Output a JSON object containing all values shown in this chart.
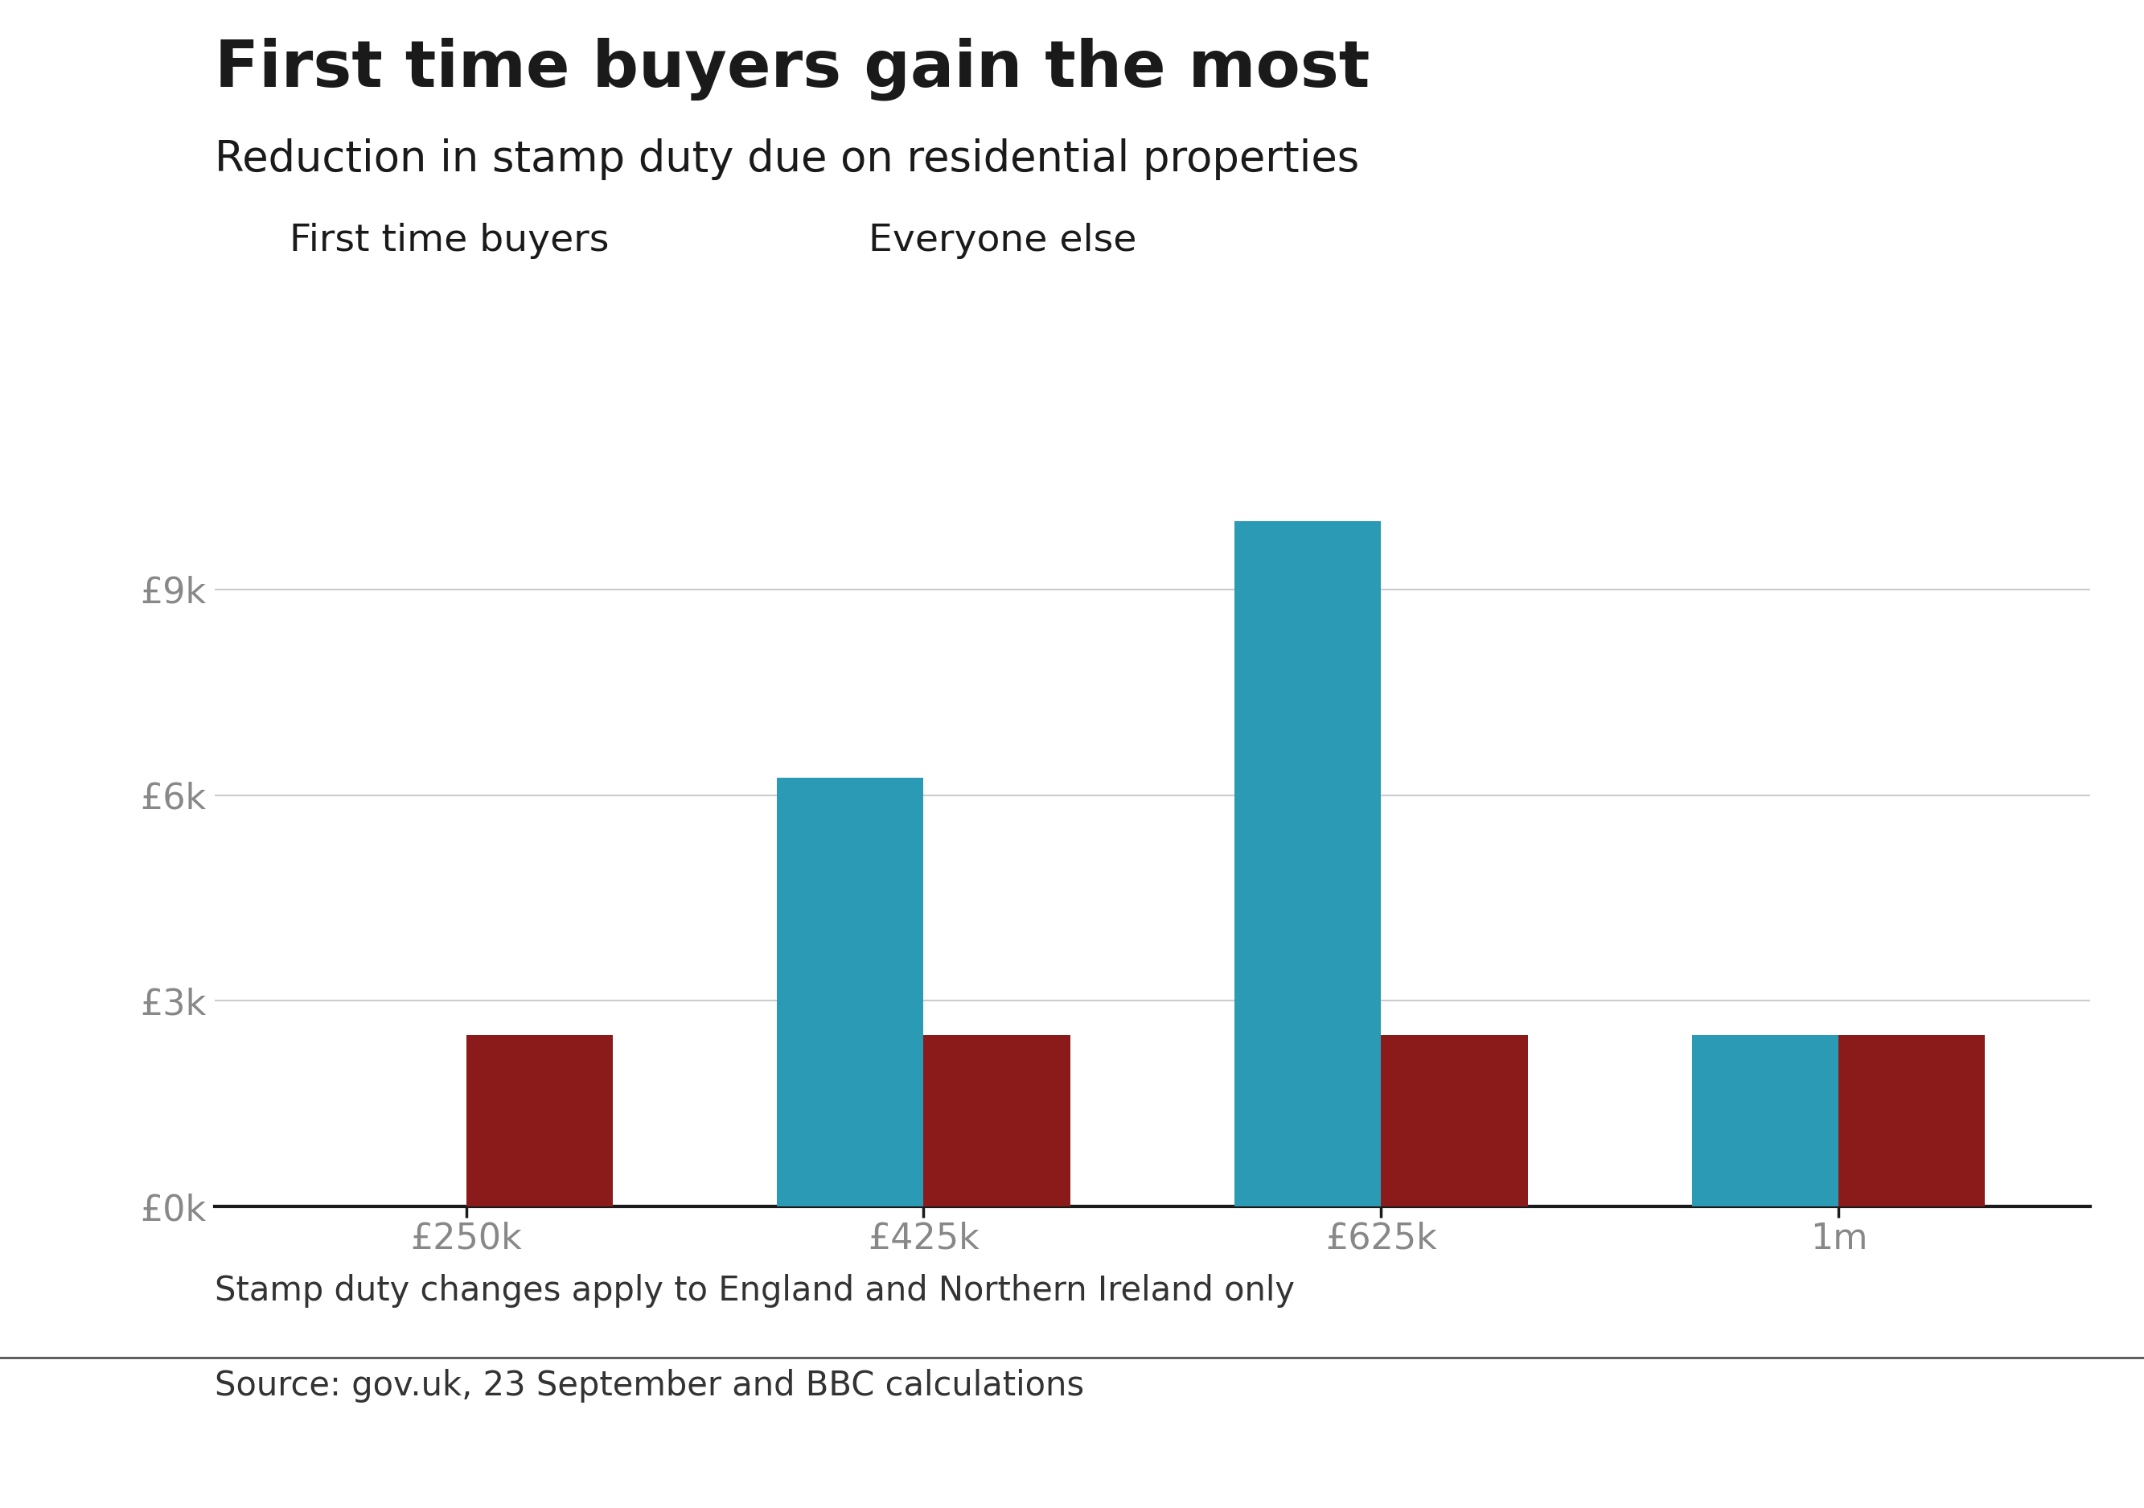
{
  "title": "First time buyers gain the most",
  "subtitle": "Reduction in stamp duty due on residential properties",
  "categories": [
    "£250k",
    "£425k",
    "£625k",
    "1m"
  ],
  "ftb_values": [
    0,
    6250,
    10000,
    2500
  ],
  "everyone_values": [
    2500,
    2500,
    2500,
    2500
  ],
  "ftb_color": "#2a9ab5",
  "everyone_color": "#8b1a1a",
  "ftb_label": "First time buyers",
  "everyone_label": "Everyone else",
  "yticks": [
    0,
    3000,
    6000,
    9000
  ],
  "ytick_labels": [
    "£0k",
    "£3k",
    "£6k",
    "£9k"
  ],
  "ylim": [
    0,
    11000
  ],
  "note": "Stamp duty changes apply to England and Northern Ireland only",
  "source": "Source: gov.uk, 23 September and BBC calculations",
  "background_color": "#ffffff",
  "title_fontsize": 58,
  "subtitle_fontsize": 38,
  "legend_fontsize": 34,
  "tick_fontsize": 32,
  "note_fontsize": 30,
  "source_fontsize": 30,
  "bar_width": 0.32,
  "grid_color": "#cccccc",
  "axis_color": "#1a1a1a",
  "text_color": "#1a1a1a",
  "note_color": "#333333",
  "tick_color": "#888888"
}
